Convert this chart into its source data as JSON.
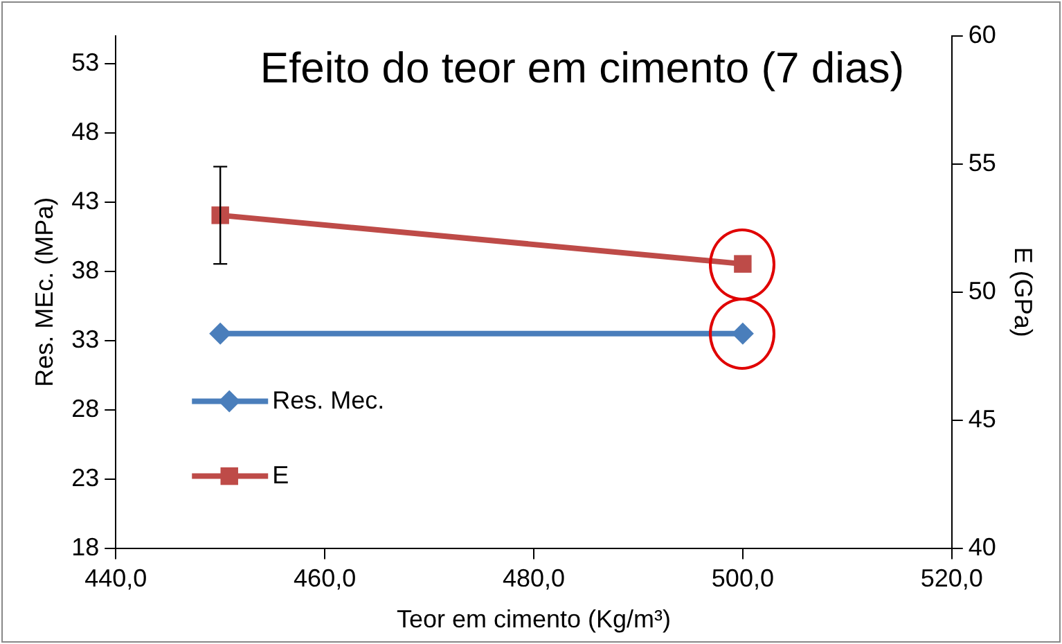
{
  "chart_data": {
    "type": "line",
    "title": "Efeito do teor em cimento (7 dias)",
    "xlabel": "Teor em cimento (Kg/m³)",
    "ylabel": "Res. MEc. (MPa)",
    "y2label": "E (GPa)",
    "xlim": [
      440,
      520
    ],
    "xticks": [
      {
        "value": 440,
        "label": "440,0"
      },
      {
        "value": 460,
        "label": "460,0"
      },
      {
        "value": 480,
        "label": "480,0"
      },
      {
        "value": 500,
        "label": "500,0"
      },
      {
        "value": 520,
        "label": "520,0"
      }
    ],
    "ylim": [
      18,
      55
    ],
    "yticks": [
      18,
      23,
      28,
      33,
      38,
      43,
      48,
      53
    ],
    "y2lim": [
      40,
      60
    ],
    "y2ticks": [
      40,
      45,
      50,
      55,
      60
    ],
    "x": [
      450,
      500
    ],
    "series": [
      {
        "name": "Res. Mec.",
        "color": "#4a7ebb",
        "values": [
          33.5,
          33.5
        ],
        "marker": "diamond"
      },
      {
        "name": "E",
        "color": "#be4b48",
        "values": [
          53.0,
          51.1
        ],
        "marker": "square",
        "axis": "y2",
        "errors": [
          1.9,
          null
        ]
      }
    ],
    "grid": false,
    "legend": "bottom left",
    "line_style": "solid"
  }
}
